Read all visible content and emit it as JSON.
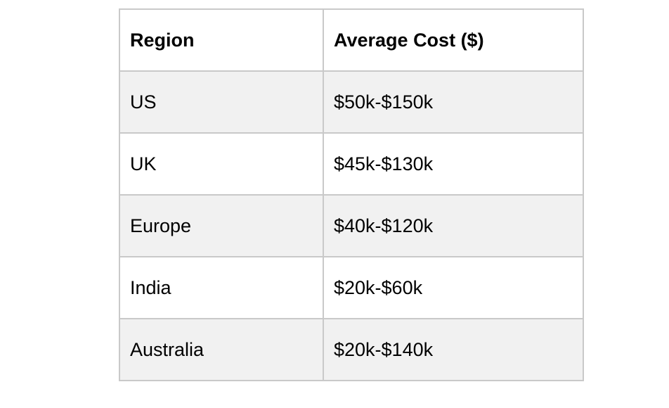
{
  "table": {
    "headers": [
      "Region",
      "Average Cost ($)"
    ],
    "rows": [
      {
        "region": "US",
        "cost": "$50k-$150k"
      },
      {
        "region": "UK",
        "cost": "$45k-$130k"
      },
      {
        "region": "Europe",
        "cost": "$40k-$120k"
      },
      {
        "region": "India",
        "cost": "$20k-$60k"
      },
      {
        "region": "Australia",
        "cost": "$20k-$140k"
      }
    ],
    "colors": {
      "border": "#c9c9c9",
      "shaded_row": "#f1f1f1",
      "plain_row": "#ffffff",
      "text": "#000000"
    }
  }
}
